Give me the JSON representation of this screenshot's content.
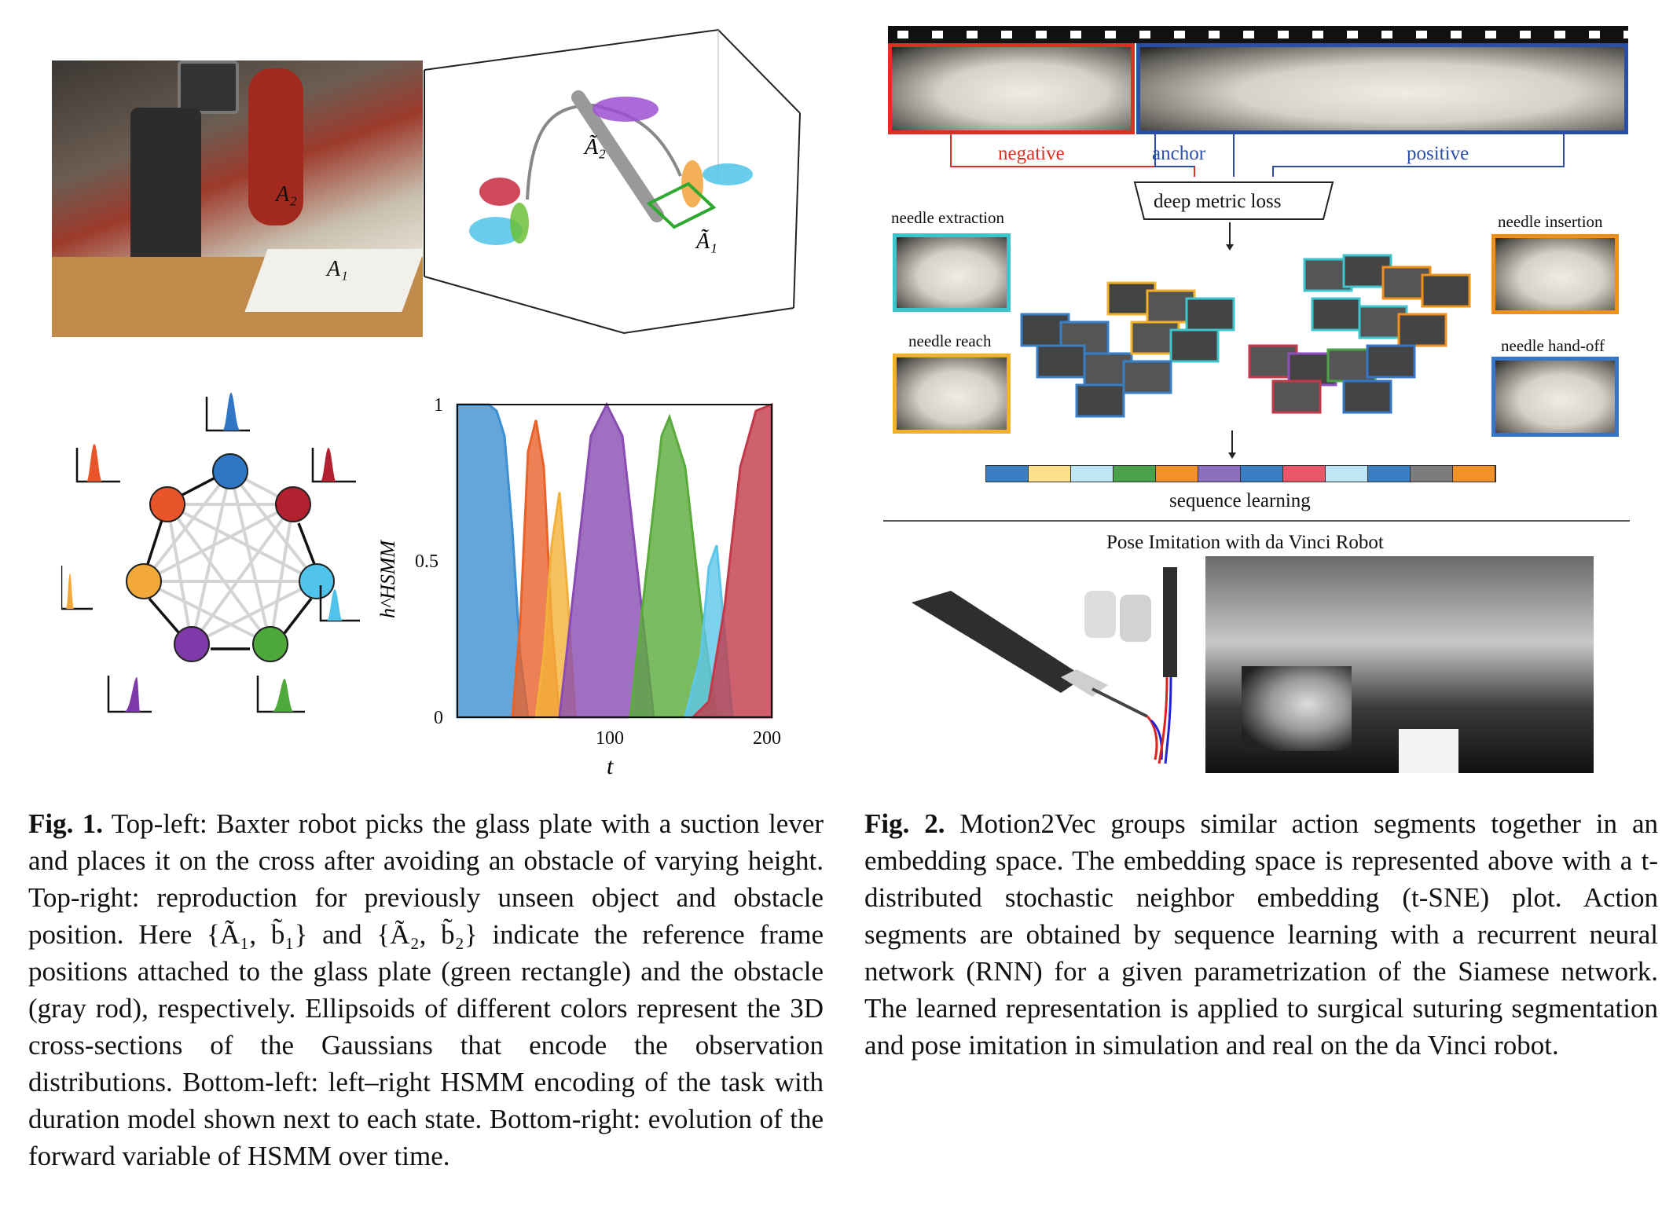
{
  "fig1": {
    "photo_labels": {
      "a2": "A₂",
      "a1": "A₁"
    },
    "plot3d_labels": {
      "a2": "Ã₂",
      "a1": "Ã₁"
    },
    "chart_data": {
      "type": "area",
      "ylabel": "h^HSMM",
      "xlabel": "t",
      "xlim": [
        0,
        200
      ],
      "ylim": [
        0,
        1
      ],
      "xticks": [
        "100",
        "200"
      ],
      "yticks": [
        "0",
        "0.5",
        "1"
      ],
      "series": [
        {
          "color": "#3d8fd1",
          "x": [
            0,
            10,
            20,
            25,
            30,
            35,
            40,
            45
          ],
          "values": [
            1,
            1,
            1,
            0.98,
            0.9,
            0.6,
            0.2,
            0
          ]
        },
        {
          "color": "#e8622a",
          "x": [
            35,
            40,
            45,
            50,
            55,
            60,
            65
          ],
          "values": [
            0,
            0.3,
            0.85,
            0.95,
            0.8,
            0.3,
            0
          ]
        },
        {
          "color": "#f2b13a",
          "x": [
            50,
            55,
            60,
            65,
            70,
            75
          ],
          "values": [
            0,
            0.2,
            0.55,
            0.72,
            0.4,
            0
          ]
        },
        {
          "color": "#8a4bb3",
          "x": [
            65,
            75,
            85,
            95,
            105,
            115,
            125
          ],
          "values": [
            0,
            0.45,
            0.9,
            1.0,
            0.9,
            0.45,
            0
          ]
        },
        {
          "color": "#5aab3c",
          "x": [
            110,
            120,
            130,
            135,
            145,
            155,
            165
          ],
          "values": [
            0,
            0.45,
            0.9,
            0.96,
            0.8,
            0.35,
            0
          ]
        },
        {
          "color": "#5ec6e8",
          "x": [
            145,
            155,
            160,
            165,
            175
          ],
          "values": [
            0,
            0.2,
            0.48,
            0.55,
            0
          ]
        },
        {
          "color": "#c23a4a",
          "x": [
            150,
            160,
            170,
            180,
            190,
            200
          ],
          "values": [
            0,
            0.05,
            0.35,
            0.8,
            0.98,
            1.0
          ]
        }
      ]
    },
    "caption": {
      "label": "Fig. 1.",
      "text": "Top-left: Baxter robot picks the glass plate with a suction lever and places it on the cross after avoiding an obstacle of varying height. Top-right: reproduction for previously unseen object and obstacle position. Here {Ã₁, b̃₁} and {Ã₂, b̃₂} indicate the reference frame positions attached to the glass plate (green rectangle) and the obstacle (gray rod), respectively. Ellipsoids of different colors represent the 3D cross-sections of the Gaussians that encode the observation distributions. Bottom-left: left–right HSMM encoding of the task with duration model shown next to each state. Bottom-right: evolution of the forward variable of HSMM over time."
    }
  },
  "fig2": {
    "triplet": {
      "negative": "negative",
      "anchor": "anchor",
      "positive": "positive"
    },
    "loss_label": "deep metric loss",
    "clusters": {
      "needle_extraction": "needle extraction",
      "needle_reach": "needle reach",
      "needle_insertion": "needle insertion",
      "needle_handoff": "needle hand-off"
    },
    "sequence_label": "sequence learning",
    "sequence_colors": [
      "#3a7fc4",
      "#fde08a",
      "#bfe6f4",
      "#4aa24a",
      "#f2902a",
      "#8d6fc0",
      "#3a7fc4",
      "#e8566a",
      "#bfe6f4",
      "#3a7fc4",
      "#7c7c7c",
      "#f2902a"
    ],
    "pose_title": "Pose Imitation with da Vinci Robot",
    "caption": {
      "label": "Fig. 2.",
      "text": "Motion2Vec groups similar action segments together in an embedding space. The embedding space is represented above with a t-distributed stochastic neighbor embedding (t-SNE) plot. Action segments are obtained by sequence learning with a recurrent neural network (RNN) for a given parametrization of the Siamese network. The learned representation is applied to surgical suturing segmentation and pose imitation in simulation and real on the da Vinci robot."
    }
  }
}
